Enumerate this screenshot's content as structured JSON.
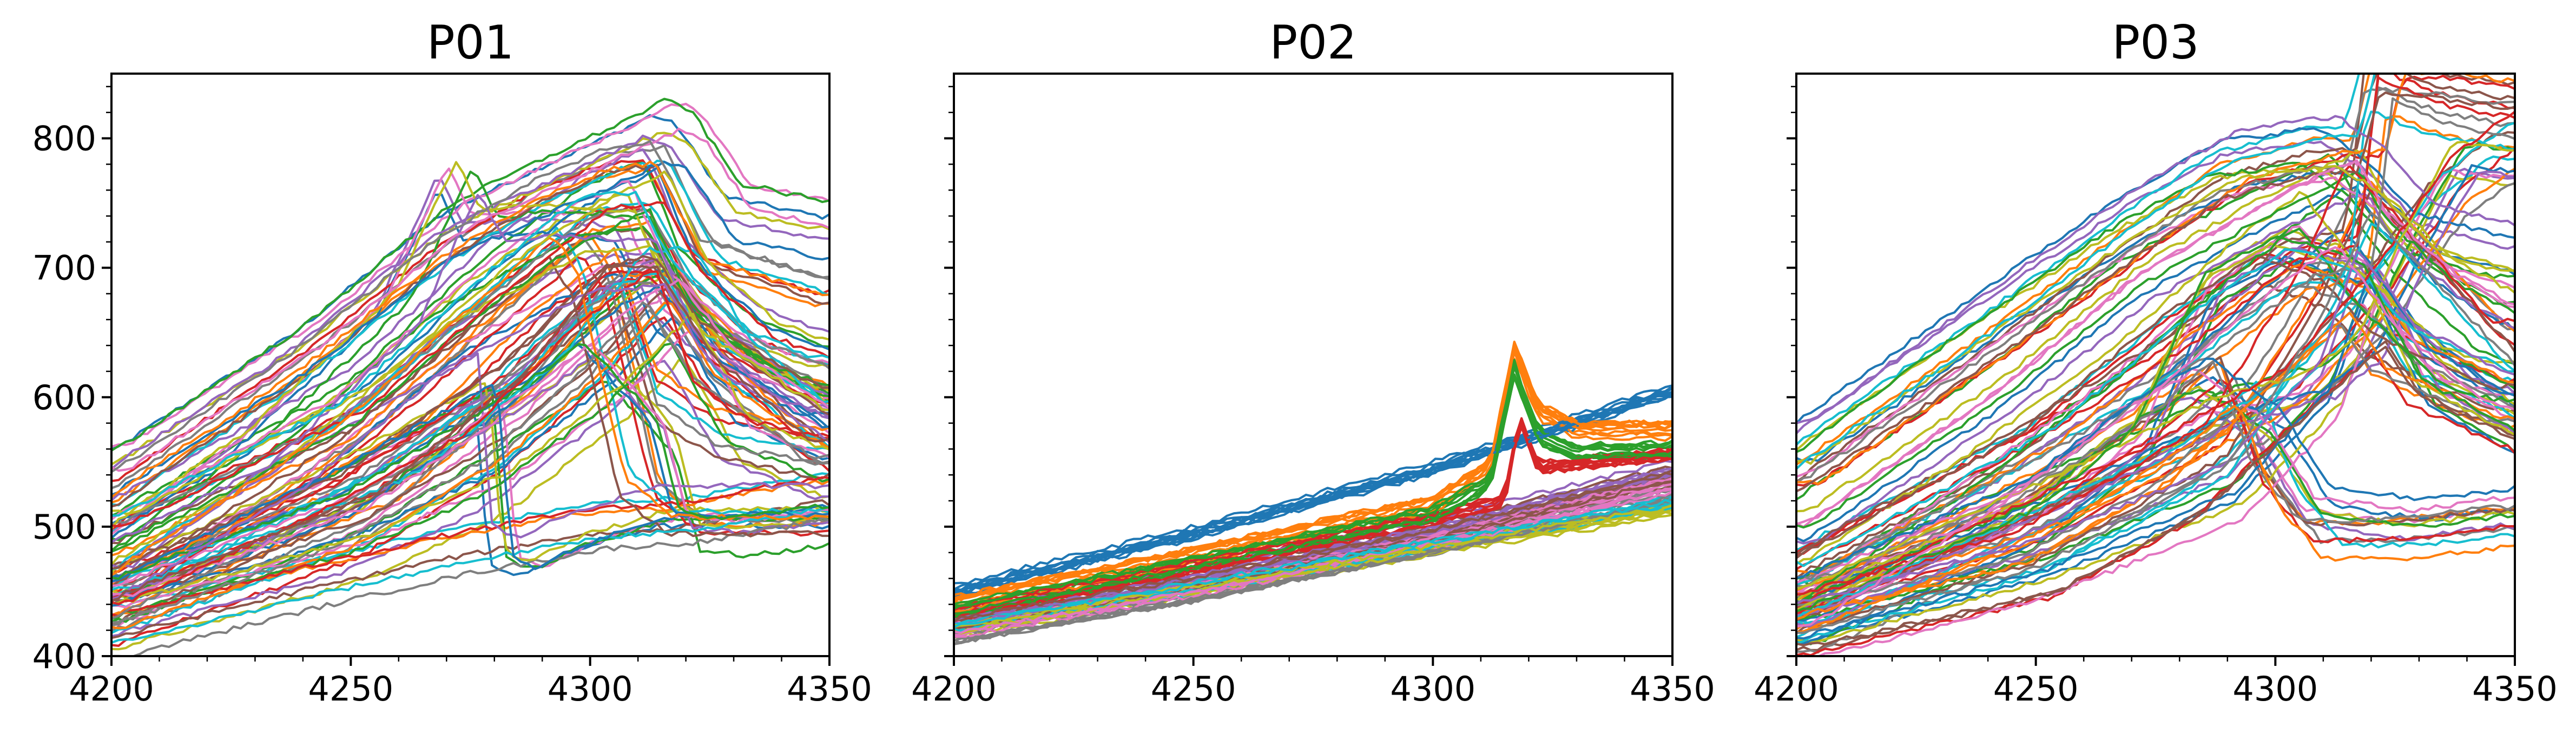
{
  "chart_data": [
    {
      "type": "line",
      "title": "P01",
      "xlim": [
        4200,
        4350
      ],
      "ylim": [
        400,
        850
      ],
      "x_ticks": [
        4200,
        4250,
        4300,
        4350
      ],
      "x_tick_labels": [
        "4200",
        "4250",
        "4300",
        "4350"
      ],
      "y_ticks": [
        400,
        500,
        600,
        700,
        800
      ],
      "y_tick_labels": [
        "400",
        "500",
        "600",
        "700",
        "800"
      ],
      "grid": false,
      "legend": "none",
      "series_count": 100,
      "representative_series": [
        {
          "x": [
            4200,
            4240,
            4270,
            4290,
            4305,
            4315,
            4320,
            4330,
            4350
          ],
          "y": [
            545,
            640,
            730,
            765,
            790,
            808,
            800,
            745,
            730
          ]
        },
        {
          "x": [
            4200,
            4240,
            4270,
            4290,
            4305,
            4315,
            4325,
            4350
          ],
          "y": [
            530,
            630,
            720,
            765,
            790,
            795,
            720,
            690
          ]
        },
        {
          "x": [
            4200,
            4250,
            4280,
            4300,
            4312,
            4320,
            4335,
            4350
          ],
          "y": [
            500,
            600,
            700,
            750,
            770,
            700,
            650,
            630
          ]
        },
        {
          "x": [
            4200,
            4250,
            4280,
            4300,
            4312,
            4320,
            4335,
            4350
          ],
          "y": [
            485,
            575,
            670,
            730,
            735,
            680,
            630,
            610
          ]
        },
        {
          "x": [
            4200,
            4230,
            4260,
            4273,
            4278,
            4290,
            4310,
            4318,
            4335,
            4350
          ],
          "y": [
            480,
            560,
            665,
            770,
            730,
            735,
            730,
            660,
            610,
            590
          ]
        },
        {
          "x": [
            4200,
            4250,
            4285,
            4305,
            4315,
            4325,
            4350
          ],
          "y": [
            460,
            535,
            620,
            690,
            700,
            650,
            600
          ]
        },
        {
          "x": [
            4200,
            4250,
            4285,
            4305,
            4315,
            4325,
            4350
          ],
          "y": [
            440,
            510,
            600,
            670,
            690,
            640,
            580
          ]
        },
        {
          "x": [
            4200,
            4250,
            4280,
            4300,
            4315,
            4325,
            4350
          ],
          "y": [
            425,
            490,
            555,
            620,
            680,
            620,
            560
          ]
        },
        {
          "x": [
            4200,
            4250,
            4280,
            4305,
            4318,
            4330,
            4350
          ],
          "y": [
            420,
            470,
            520,
            590,
            640,
            560,
            530
          ]
        },
        {
          "x": [
            4200,
            4240,
            4270,
            4300,
            4320,
            4335,
            4350
          ],
          "y": [
            418,
            455,
            480,
            500,
            505,
            515,
            525
          ]
        },
        {
          "x": [
            4200,
            4250,
            4280,
            4283,
            4288,
            4300,
            4318,
            4350
          ],
          "y": [
            470,
            560,
            620,
            490,
            480,
            500,
            520,
            520
          ]
        },
        {
          "x": [
            4200,
            4250,
            4280,
            4295,
            4300,
            4310,
            4320,
            4350
          ],
          "y": [
            460,
            580,
            680,
            730,
            700,
            540,
            510,
            510
          ]
        },
        {
          "x": [
            4200,
            4250,
            4285,
            4300,
            4315,
            4320,
            4330,
            4350
          ],
          "y": [
            450,
            520,
            600,
            640,
            580,
            505,
            500,
            510
          ]
        },
        {
          "x": [
            4200,
            4240,
            4270,
            4295,
            4310,
            4318,
            4330,
            4350
          ],
          "y": [
            430,
            500,
            560,
            650,
            690,
            600,
            570,
            555
          ]
        },
        {
          "x": [
            4200,
            4240,
            4270,
            4300,
            4315,
            4325,
            4350
          ],
          "y": [
            455,
            545,
            640,
            700,
            705,
            640,
            580
          ]
        },
        {
          "x": [
            4200,
            4260,
            4290,
            4308,
            4318,
            4330,
            4350
          ],
          "y": [
            435,
            525,
            615,
            700,
            700,
            630,
            565
          ]
        }
      ]
    },
    {
      "type": "line",
      "title": "P02",
      "xlim": [
        4200,
        4350
      ],
      "ylim": [
        400,
        850
      ],
      "x_ticks": [
        4200,
        4250,
        4300,
        4350
      ],
      "x_tick_labels": [
        "4200",
        "4250",
        "4300",
        "4350"
      ],
      "y_ticks": [
        400,
        500,
        600,
        700,
        800
      ],
      "grid": false,
      "legend": "none",
      "series_count": 100,
      "representative_series": [
        {
          "x": [
            4200,
            4250,
            4300,
            4350
          ],
          "y": [
            450,
            495,
            545,
            605
          ]
        },
        {
          "x": [
            4200,
            4250,
            4300,
            4312,
            4317,
            4322,
            4330,
            4350
          ],
          "y": [
            440,
            478,
            518,
            545,
            637,
            590,
            575,
            575
          ]
        },
        {
          "x": [
            4200,
            4250,
            4300,
            4312,
            4317,
            4322,
            4330,
            4350
          ],
          "y": [
            435,
            472,
            510,
            535,
            622,
            570,
            558,
            560
          ]
        },
        {
          "x": [
            4200,
            4250,
            4300,
            4315,
            4318,
            4322,
            4350
          ],
          "y": [
            432,
            468,
            505,
            520,
            585,
            545,
            555
          ]
        },
        {
          "x": [
            4200,
            4250,
            4300,
            4350
          ],
          "y": [
            428,
            462,
            500,
            545
          ]
        },
        {
          "x": [
            4200,
            4250,
            4300,
            4350
          ],
          "y": [
            425,
            458,
            495,
            540
          ]
        },
        {
          "x": [
            4200,
            4250,
            4300,
            4350
          ],
          "y": [
            420,
            452,
            490,
            532
          ]
        },
        {
          "x": [
            4200,
            4250,
            4300,
            4350
          ],
          "y": [
            416,
            448,
            485,
            525
          ]
        },
        {
          "x": [
            4200,
            4250,
            4300,
            4350
          ],
          "y": [
            418,
            450,
            482,
            512
          ]
        },
        {
          "x": [
            4200,
            4250,
            4300,
            4350
          ],
          "y": [
            424,
            455,
            488,
            520
          ]
        }
      ]
    },
    {
      "type": "line",
      "title": "P03",
      "xlim": [
        4200,
        4350
      ],
      "ylim": [
        400,
        850
      ],
      "x_ticks": [
        4200,
        4250,
        4300,
        4350
      ],
      "x_tick_labels": [
        "4200",
        "4250",
        "4300",
        "4350"
      ],
      "y_ticks": [
        400,
        500,
        600,
        700,
        800
      ],
      "grid": false,
      "legend": "none",
      "series_count": 100,
      "representative_series": [
        {
          "x": [
            4200,
            4240,
            4270,
            4290,
            4310,
            4320,
            4330,
            4350
          ],
          "y": [
            555,
            660,
            735,
            775,
            785,
            760,
            720,
            700
          ]
        },
        {
          "x": [
            4200,
            4240,
            4270,
            4290,
            4310,
            4318,
            4322,
            4330,
            4350
          ],
          "y": [
            540,
            640,
            720,
            770,
            790,
            790,
            850,
            850,
            840
          ]
        },
        {
          "x": [
            4200,
            4240,
            4270,
            4300,
            4315,
            4320,
            4335,
            4350
          ],
          "y": [
            500,
            600,
            690,
            750,
            775,
            740,
            690,
            660
          ]
        },
        {
          "x": [
            4200,
            4250,
            4285,
            4305,
            4318,
            4322,
            4335,
            4350
          ],
          "y": [
            470,
            570,
            650,
            710,
            720,
            850,
            830,
            820
          ]
        },
        {
          "x": [
            4200,
            4250,
            4290,
            4310,
            4320,
            4330,
            4340,
            4350
          ],
          "y": [
            450,
            530,
            600,
            620,
            650,
            730,
            795,
            790
          ]
        },
        {
          "x": [
            4200,
            4250,
            4280,
            4300,
            4315,
            4325,
            4350
          ],
          "y": [
            460,
            560,
            650,
            700,
            680,
            640,
            600
          ]
        },
        {
          "x": [
            4200,
            4250,
            4270,
            4285,
            4300,
            4310,
            4330,
            4350
          ],
          "y": [
            440,
            520,
            580,
            610,
            570,
            510,
            500,
            510
          ]
        },
        {
          "x": [
            4200,
            4250,
            4280,
            4292,
            4300,
            4310,
            4325,
            4350
          ],
          "y": [
            435,
            510,
            580,
            620,
            540,
            495,
            495,
            505
          ]
        },
        {
          "x": [
            4200,
            4250,
            4270,
            4285,
            4300,
            4318,
            4330,
            4350
          ],
          "y": [
            430,
            510,
            570,
            690,
            720,
            700,
            610,
            570
          ]
        },
        {
          "x": [
            4200,
            4240,
            4270,
            4300,
            4320,
            4335,
            4350
          ],
          "y": [
            425,
            490,
            540,
            600,
            680,
            760,
            800
          ]
        },
        {
          "x": [
            4200,
            4250,
            4290,
            4310,
            4318,
            4330,
            4350
          ],
          "y": [
            420,
            470,
            530,
            610,
            700,
            640,
            600
          ]
        },
        {
          "x": [
            4200,
            4250,
            4280,
            4300,
            4318,
            4325,
            4350
          ],
          "y": [
            418,
            460,
            520,
            590,
            650,
            610,
            570
          ]
        },
        {
          "x": [
            4200,
            4240,
            4270,
            4295,
            4310,
            4322,
            4340,
            4350
          ],
          "y": [
            445,
            540,
            620,
            700,
            740,
            680,
            620,
            610
          ]
        },
        {
          "x": [
            4200,
            4250,
            4290,
            4310,
            4320,
            4335,
            4350
          ],
          "y": [
            428,
            480,
            560,
            680,
            760,
            700,
            640
          ]
        }
      ]
    }
  ]
}
